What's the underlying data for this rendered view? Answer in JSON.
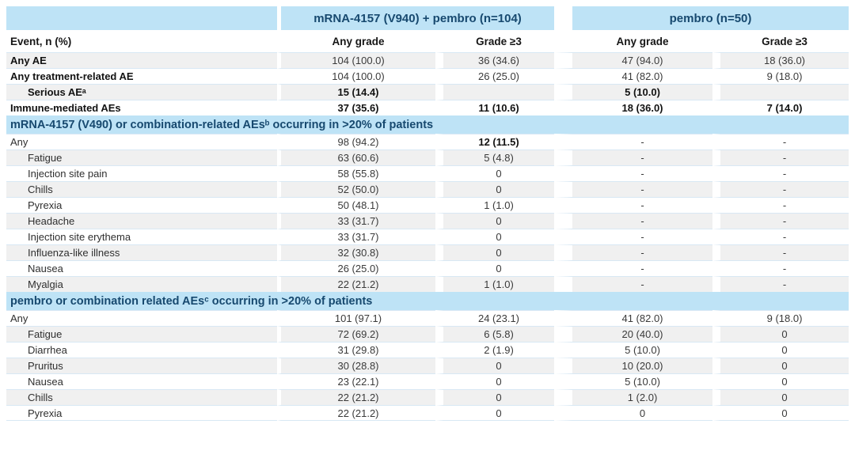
{
  "colors": {
    "header_blue": "#bee3f6",
    "header_text_navy": "#17496f",
    "stripe_gray": "#f0f0f0",
    "row_separator": "#d8e8f4"
  },
  "table": {
    "group_headers": {
      "empty": "",
      "combo": "mRNA-4157 (V940) + pembro (n=104)",
      "pembro": "pembro (n=50)"
    },
    "column_headers": [
      "Event, n (%)",
      "Any grade",
      "Grade ≥3",
      "Any grade",
      "Grade ≥3"
    ],
    "rows": [
      {
        "type": "data",
        "label": "Any AE",
        "indent": 0,
        "bold_label": true,
        "shade": true,
        "values": [
          "104 (100.0)",
          "36 (34.6)",
          "47 (94.0)",
          "18 (36.0)"
        ],
        "bold_values": [
          false,
          false,
          false,
          false
        ]
      },
      {
        "type": "data",
        "label": "Any treatment-related AE",
        "indent": 0,
        "bold_label": true,
        "shade": false,
        "values": [
          "104 (100.0)",
          "26 (25.0)",
          "41 (82.0)",
          "9 (18.0)"
        ],
        "bold_values": [
          false,
          false,
          false,
          false
        ]
      },
      {
        "type": "data",
        "label": "Serious AEᵃ",
        "indent": 1,
        "bold_label": true,
        "shade": true,
        "values": [
          "15 (14.4)",
          "",
          "5 (10.0)",
          ""
        ],
        "bold_values": [
          true,
          true,
          true,
          true
        ]
      },
      {
        "type": "data",
        "label": "Immune-mediated AEs",
        "indent": 0,
        "bold_label": true,
        "shade": false,
        "values": [
          "37 (35.6)",
          "11 (10.6)",
          "18 (36.0)",
          "7 (14.0)"
        ],
        "bold_values": [
          true,
          true,
          true,
          true
        ]
      },
      {
        "type": "section",
        "label": "mRNA-4157 (V490) or combination-related AEsᵇ occurring in >20% of patients"
      },
      {
        "type": "data",
        "label": "Any",
        "indent": 0,
        "bold_label": false,
        "shade": false,
        "values": [
          "98 (94.2)",
          "12 (11.5)",
          "-",
          "-"
        ],
        "bold_values": [
          false,
          true,
          false,
          false
        ]
      },
      {
        "type": "data",
        "label": "Fatigue",
        "indent": 1,
        "bold_label": false,
        "shade": true,
        "values": [
          "63 (60.6)",
          "5 (4.8)",
          "-",
          "-"
        ],
        "bold_values": [
          false,
          false,
          false,
          false
        ]
      },
      {
        "type": "data",
        "label": "Injection site pain",
        "indent": 1,
        "bold_label": false,
        "shade": false,
        "values": [
          "58 (55.8)",
          "0",
          "-",
          "-"
        ],
        "bold_values": [
          false,
          false,
          false,
          false
        ]
      },
      {
        "type": "data",
        "label": "Chills",
        "indent": 1,
        "bold_label": false,
        "shade": true,
        "values": [
          "52 (50.0)",
          "0",
          "-",
          "-"
        ],
        "bold_values": [
          false,
          false,
          false,
          false
        ]
      },
      {
        "type": "data",
        "label": "Pyrexia",
        "indent": 1,
        "bold_label": false,
        "shade": false,
        "values": [
          "50 (48.1)",
          "1 (1.0)",
          "-",
          "-"
        ],
        "bold_values": [
          false,
          false,
          false,
          false
        ]
      },
      {
        "type": "data",
        "label": "Headache",
        "indent": 1,
        "bold_label": false,
        "shade": true,
        "values": [
          "33 (31.7)",
          "0",
          "-",
          "-"
        ],
        "bold_values": [
          false,
          false,
          false,
          false
        ]
      },
      {
        "type": "data",
        "label": "Injection site erythema",
        "indent": 1,
        "bold_label": false,
        "shade": false,
        "values": [
          "33 (31.7)",
          "0",
          "-",
          "-"
        ],
        "bold_values": [
          false,
          false,
          false,
          false
        ]
      },
      {
        "type": "data",
        "label": "Influenza-like illness",
        "indent": 1,
        "bold_label": false,
        "shade": true,
        "values": [
          "32 (30.8)",
          "0",
          "-",
          "-"
        ],
        "bold_values": [
          false,
          false,
          false,
          false
        ]
      },
      {
        "type": "data",
        "label": "Nausea",
        "indent": 1,
        "bold_label": false,
        "shade": false,
        "values": [
          "26 (25.0)",
          "0",
          "-",
          "-"
        ],
        "bold_values": [
          false,
          false,
          false,
          false
        ]
      },
      {
        "type": "data",
        "label": "Myalgia",
        "indent": 1,
        "bold_label": false,
        "shade": true,
        "values": [
          "22 (21.2)",
          "1 (1.0)",
          "-",
          "-"
        ],
        "bold_values": [
          false,
          false,
          false,
          false
        ]
      },
      {
        "type": "section",
        "label": "pembro or combination related AEsᶜ occurring in >20% of patients"
      },
      {
        "type": "data",
        "label": "Any",
        "indent": 0,
        "bold_label": false,
        "shade": false,
        "values": [
          "101 (97.1)",
          "24 (23.1)",
          "41 (82.0)",
          "9 (18.0)"
        ],
        "bold_values": [
          false,
          false,
          false,
          false
        ]
      },
      {
        "type": "data",
        "label": "Fatigue",
        "indent": 1,
        "bold_label": false,
        "shade": true,
        "values": [
          "72 (69.2)",
          "6 (5.8)",
          "20 (40.0)",
          "0"
        ],
        "bold_values": [
          false,
          false,
          false,
          false
        ]
      },
      {
        "type": "data",
        "label": "Diarrhea",
        "indent": 1,
        "bold_label": false,
        "shade": false,
        "values": [
          "31 (29.8)",
          "2 (1.9)",
          "5 (10.0)",
          "0"
        ],
        "bold_values": [
          false,
          false,
          false,
          false
        ]
      },
      {
        "type": "data",
        "label": "Pruritus",
        "indent": 1,
        "bold_label": false,
        "shade": true,
        "values": [
          "30 (28.8)",
          "0",
          "10 (20.0)",
          "0"
        ],
        "bold_values": [
          false,
          false,
          false,
          false
        ]
      },
      {
        "type": "data",
        "label": "Nausea",
        "indent": 1,
        "bold_label": false,
        "shade": false,
        "values": [
          "23 (22.1)",
          "0",
          "5 (10.0)",
          "0"
        ],
        "bold_values": [
          false,
          false,
          false,
          false
        ]
      },
      {
        "type": "data",
        "label": "Chills",
        "indent": 1,
        "bold_label": false,
        "shade": true,
        "values": [
          "22 (21.2)",
          "0",
          "1 (2.0)",
          "0"
        ],
        "bold_values": [
          false,
          false,
          false,
          false
        ]
      },
      {
        "type": "data",
        "label": "Pyrexia",
        "indent": 1,
        "bold_label": false,
        "shade": false,
        "values": [
          "22 (21.2)",
          "0",
          "0",
          "0"
        ],
        "bold_values": [
          false,
          false,
          false,
          false
        ]
      }
    ]
  }
}
